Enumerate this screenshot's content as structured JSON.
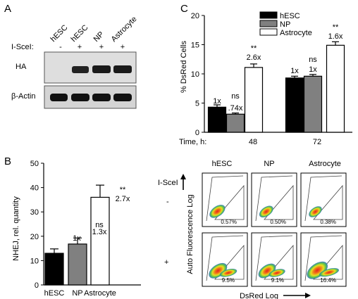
{
  "panels": {
    "a": {
      "letter": "A",
      "columns": [
        "hESC",
        "hESC",
        "NP",
        "Astrocyte"
      ],
      "isce_label": "I-SceI:",
      "isce_values": [
        "-",
        "+",
        "+",
        "+"
      ],
      "rows": [
        "HA",
        "β-Actin"
      ]
    },
    "b": {
      "letter": "B",
      "ylabel": "NHEJ, rel. quantity",
      "annotations": [
        "1x",
        "ns",
        "1.3x",
        "**",
        "2.7x"
      ]
    },
    "c": {
      "letter": "C",
      "ylabel": "% DsRed Cells",
      "time_label": "Time, h:",
      "time_values": [
        "48",
        "72"
      ],
      "annotations_48": [
        "1x",
        "ns",
        ".74x",
        "**",
        "2.6x"
      ],
      "annotations_72": [
        "1x",
        "ns",
        "1x",
        "**",
        "1.6x"
      ]
    },
    "flow": {
      "columns": [
        "hESC",
        "NP",
        "Astrocyte"
      ],
      "row_title": "I-SceI",
      "rows": [
        "-",
        "+"
      ],
      "percentages": [
        [
          "0.57%",
          "0.50%",
          "0.38%"
        ],
        [
          "9.5%",
          "9.1%",
          "16.4%"
        ]
      ],
      "xlabel": "DsRed Log",
      "ylabel": "Auto Fluorescence Log"
    }
  },
  "colors": {
    "hESC": "#000000",
    "NP": "#808080",
    "Astrocyte": "#ffffff"
  },
  "chart_data": [
    {
      "type": "bar",
      "categories": [
        "hESC",
        "NP",
        "Astrocyte"
      ],
      "values": [
        13,
        16.8,
        36
      ],
      "errors": [
        1.8,
        2.5,
        5
      ],
      "xlabel": "",
      "ylabel": "NHEJ, rel. quantity",
      "ylim": [
        0,
        50
      ],
      "yticks": [
        "0",
        "10",
        "20",
        "30",
        "40",
        "50"
      ]
    },
    {
      "type": "bar",
      "categories": [
        "48",
        "72"
      ],
      "series": [
        {
          "name": "hESC",
          "values": [
            4.3,
            9.3
          ],
          "errors": [
            0.4,
            0.3
          ]
        },
        {
          "name": "NP",
          "values": [
            3.1,
            9.6
          ],
          "errors": [
            0.2,
            0.3
          ]
        },
        {
          "name": "Astrocyte",
          "values": [
            11.1,
            14.9
          ],
          "errors": [
            0.6,
            0.6
          ]
        }
      ],
      "xlabel": "Time, h:",
      "ylabel": "% DsRed Cells",
      "ylim": [
        0,
        20
      ],
      "yticks": [
        "0",
        "5",
        "10",
        "15",
        "20"
      ],
      "legend": "top-left"
    }
  ]
}
